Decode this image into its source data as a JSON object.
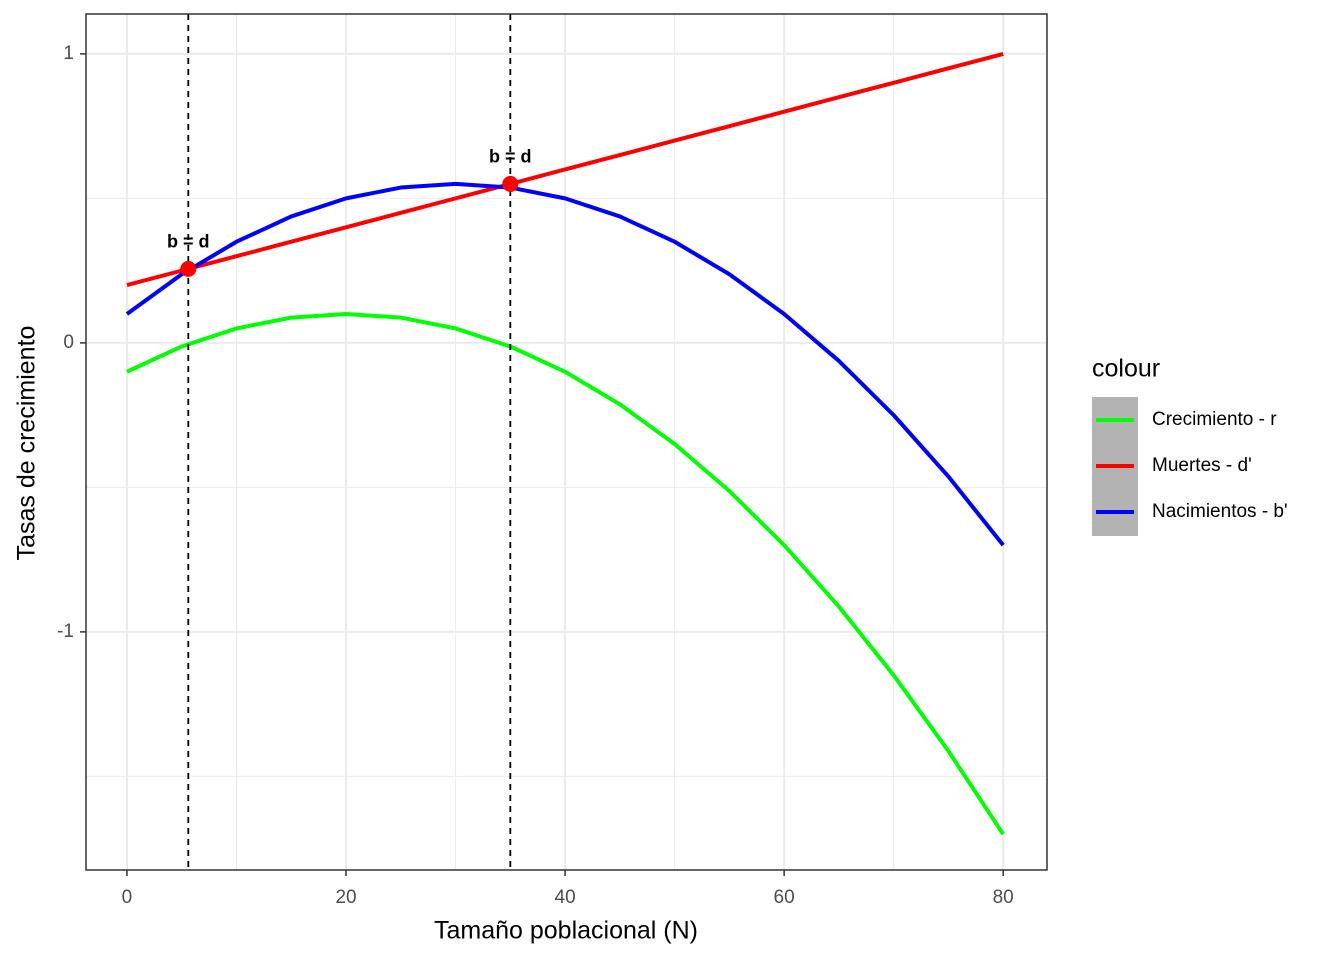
{
  "chart_data": {
    "type": "line",
    "x_label": "Tamaño poblacional (N)",
    "y_label": "Tasas de crecimiento",
    "x": [
      0,
      5,
      10,
      15,
      20,
      25,
      30,
      35,
      40,
      45,
      50,
      55,
      60,
      65,
      70,
      75,
      80
    ],
    "series": [
      {
        "name": "Crecimiento - r",
        "color": "#00ff00",
        "values": [
          -0.1,
          -0.0125,
          0.05,
          0.0875,
          0.1,
          0.0875,
          0.05,
          -0.0125,
          -0.1,
          -0.2125,
          -0.35,
          -0.5125,
          -0.7,
          -0.9125,
          -1.15,
          -1.4125,
          -1.7
        ]
      },
      {
        "name": "Muertes - d'",
        "color": "#ff0000",
        "values": [
          0.2,
          0.25,
          0.3,
          0.35,
          0.4,
          0.45,
          0.5,
          0.55,
          0.6,
          0.65,
          0.7,
          0.75,
          0.8,
          0.85,
          0.9,
          0.95,
          1.0
        ]
      },
      {
        "name": "Nacimientos - b'",
        "color": "#0000ff",
        "values": [
          0.1,
          0.2375,
          0.35,
          0.4375,
          0.5,
          0.5375,
          0.55,
          0.5375,
          0.5,
          0.4375,
          0.35,
          0.2375,
          0.1,
          -0.0625,
          -0.25,
          -0.4625,
          -0.7
        ]
      }
    ],
    "points": {
      "x": [
        5.6,
        35
      ],
      "y": [
        0.256,
        0.55
      ],
      "labels": [
        "b = d",
        "b = d"
      ],
      "color": "#ff0000"
    },
    "vlines": [
      5.6,
      35
    ],
    "xlim": [
      -3.74,
      84
    ],
    "ylim": [
      -1.824,
      1.138
    ],
    "xticks": [
      0,
      20,
      40,
      60,
      80
    ],
    "yticks": [
      -1,
      0,
      1
    ],
    "x_minor_grid": [
      10,
      30,
      50,
      70
    ],
    "y_minor_grid": [
      -1.5,
      -0.5,
      0.5
    ],
    "grid": true,
    "legend_title": "colour",
    "legend": "right"
  }
}
